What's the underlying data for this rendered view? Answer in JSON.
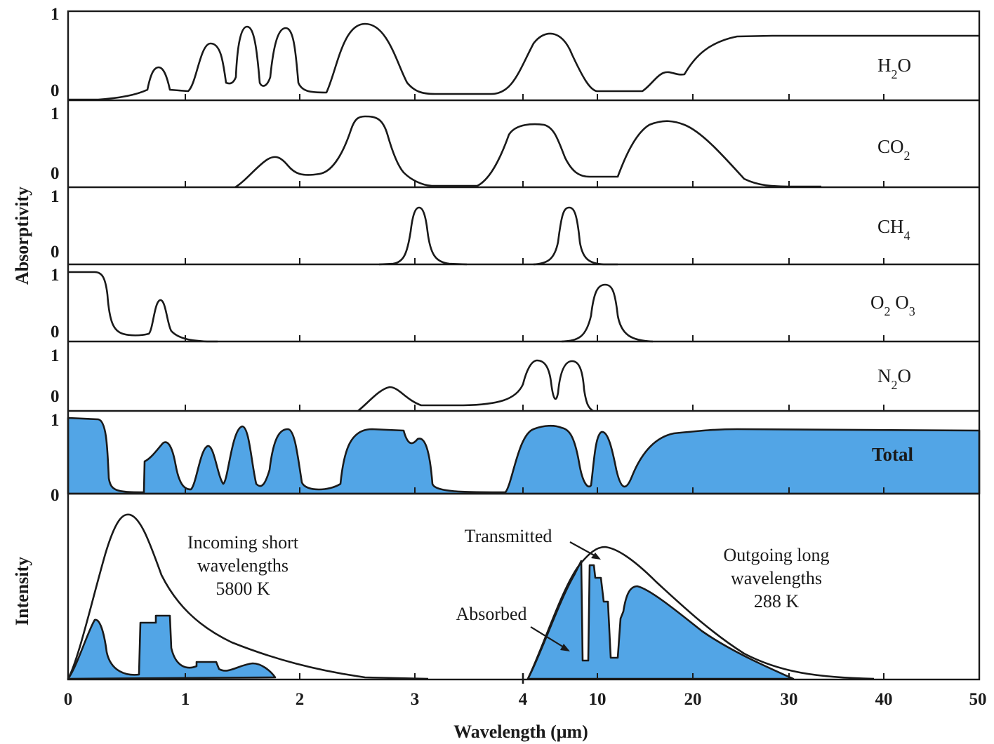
{
  "chart_data": {
    "type": "area",
    "ylabel_top": "Absorptivity",
    "ylabel_bottom": "Intensity",
    "xlabel": "Wavelength (μm)",
    "y_ticks": [
      "1",
      "0"
    ],
    "x_scale_segments": [
      {
        "range": [
          0,
          3
        ],
        "ticks": [
          "0",
          "1",
          "2",
          "3"
        ]
      },
      {
        "range": [
          4,
          50
        ],
        "scale": "log",
        "ticks": [
          "4",
          "10",
          "20",
          "30",
          "40",
          "50"
        ]
      }
    ],
    "panels": [
      {
        "label": "H",
        "label_sub": "2",
        "label_tail": "O",
        "peaks": [
          {
            "wavelength": 0.72,
            "absorptivity": 0.42
          },
          {
            "wavelength": 1.25,
            "absorptivity": 0.7
          },
          {
            "wavelength": 1.55,
            "absorptivity": 0.88
          },
          {
            "wavelength": 1.9,
            "absorptivity": 0.88
          },
          {
            "wavelength": 2.65,
            "absorptivity": 0.98
          },
          {
            "wavelength": 6.3,
            "absorptivity": 0.86
          },
          {
            "wavelength": 17,
            "absorptivity": 0.33
          },
          {
            "wavelength": 30,
            "absorptivity": 0.75
          }
        ]
      },
      {
        "label": "CO",
        "label_sub": "2",
        "label_tail": "",
        "peaks": [
          {
            "wavelength": 1.8,
            "absorptivity": 0.35
          },
          {
            "wavelength": 2.7,
            "absorptivity": 0.98
          },
          {
            "wavelength": 4.3,
            "absorptivity": 0.85
          },
          {
            "wavelength": 15,
            "absorptivity": 0.88
          }
        ]
      },
      {
        "label": "CH",
        "label_sub": "4",
        "label_tail": "",
        "peaks": [
          {
            "wavelength": 3.3,
            "absorptivity": 0.92
          },
          {
            "wavelength": 7.7,
            "absorptivity": 0.92
          }
        ]
      },
      {
        "label": "O",
        "label_sub": "2",
        "label_tail": " O",
        "label_sub2": "3",
        "peaks": [
          {
            "wavelength": 0.2,
            "absorptivity": 1.0
          },
          {
            "wavelength": 0.76,
            "absorptivity": 0.62
          },
          {
            "wavelength": 9.6,
            "absorptivity": 0.85
          }
        ]
      },
      {
        "label": "N",
        "label_sub": "2",
        "label_tail": "O",
        "peaks": [
          {
            "wavelength": 2.8,
            "absorptivity": 0.33
          },
          {
            "wavelength": 4.5,
            "absorptivity": 0.9
          },
          {
            "wavelength": 7.8,
            "absorptivity": 0.9
          }
        ]
      },
      {
        "label": "Total",
        "label_sub": "",
        "label_tail": "",
        "filled": true,
        "color": "#3a98e2"
      }
    ],
    "intensity_panel": {
      "curves": [
        {
          "name": "Incoming short wavelengths",
          "temperature": "5800 K",
          "peak_wavelength": 0.5
        },
        {
          "name": "Outgoing long wavelengths",
          "temperature": "288 K",
          "peak_wavelength": 10
        }
      ],
      "annotations": {
        "incoming": [
          "Incoming short",
          "wavelengths",
          "5800 K"
        ],
        "outgoing": [
          "Outgoing long",
          "wavelengths",
          "288 K"
        ],
        "transmitted": "Transmitted",
        "absorbed": "Absorbed"
      },
      "absorbed_color": "#3a98e2"
    }
  }
}
